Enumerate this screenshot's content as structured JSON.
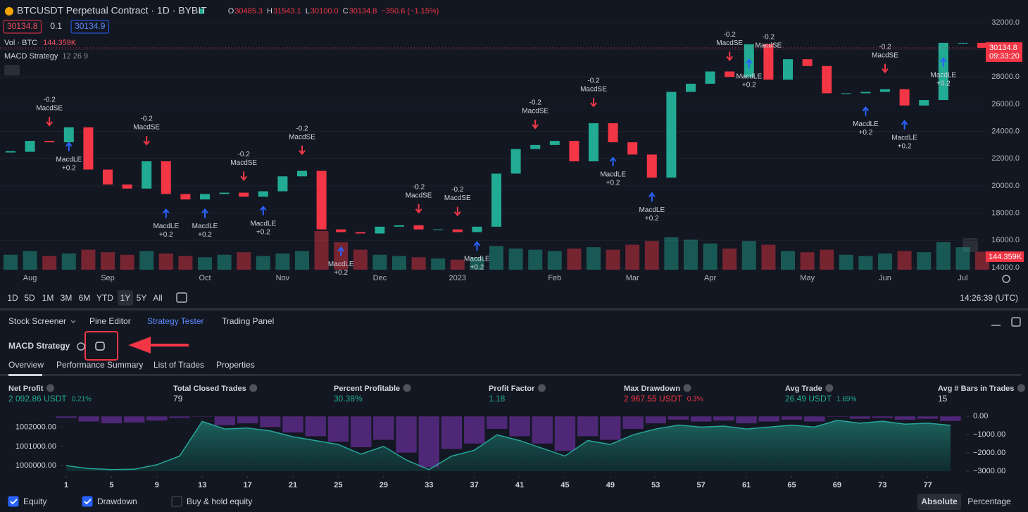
{
  "header": {
    "symbol": "BTCUSDT Perpetual Contract · 1D · BYBIT",
    "ohlc": [
      {
        "key": "O",
        "value": "30485.3"
      },
      {
        "key": "H",
        "value": "31543.1"
      },
      {
        "key": "L",
        "value": "30100.0"
      },
      {
        "key": "C",
        "value": "30134.8"
      }
    ],
    "change": "−350.6 (−1.15%)",
    "order_badges": [
      "30134.8",
      "0.1",
      "30134.9"
    ],
    "volume_label": "Vol · BTC",
    "volume_value": "144.359K",
    "indicator": "MACD Strategy",
    "indicator_params": "12 26 9"
  },
  "price_chart": {
    "type": "candlestick",
    "close": [
      22500,
      23300,
      23200,
      24300,
      21200,
      20100,
      19800,
      21800,
      19400,
      19000,
      19400,
      19500,
      19200,
      19600,
      20700,
      21100,
      16800,
      16600,
      16500,
      17000,
      17100,
      16800,
      16800,
      16600,
      17000,
      20900,
      22700,
      23000,
      23300,
      21800,
      24600,
      23200,
      22300,
      20600,
      26900,
      27500,
      28400,
      28000,
      30400,
      27800,
      29300,
      28800,
      26800,
      26800,
      26900,
      27100,
      25900,
      26300,
      30500,
      30500,
      30134.8
    ],
    "volume": [
      120,
      150,
      110,
      130,
      160,
      140,
      120,
      150,
      130,
      110,
      100,
      120,
      140,
      110,
      130,
      150,
      310,
      220,
      160,
      120,
      110,
      100,
      90,
      80,
      100,
      190,
      170,
      160,
      150,
      170,
      180,
      160,
      200,
      230,
      260,
      240,
      210,
      170,
      230,
      200,
      150,
      140,
      160,
      120,
      110,
      130,
      150,
      140,
      220,
      180,
      144.359
    ],
    "signals": [
      null,
      null,
      {
        "side": "short",
        "label": "MacdSE",
        "qty": "-0.2"
      },
      {
        "side": "long",
        "label": "MacdLE",
        "qty": "+0.2"
      },
      null,
      null,
      null,
      {
        "side": "short",
        "label": "MacdSE",
        "qty": "-0.2"
      },
      {
        "side": "long",
        "label": "MacdLE",
        "qty": "+0.2"
      },
      null,
      {
        "side": "long",
        "label": "MacdLE",
        "qty": "+0.2"
      },
      null,
      {
        "side": "short",
        "label": "MacdSE",
        "qty": "-0.2"
      },
      {
        "side": "long",
        "label": "MacdLE",
        "qty": "+0.2"
      },
      null,
      {
        "side": "short",
        "label": "MacdSE",
        "qty": "-0.2"
      },
      null,
      {
        "side": "long",
        "label": "MacdLE",
        "qty": "+0.2"
      },
      null,
      null,
      null,
      {
        "side": "short",
        "label": "MacdSE",
        "qty": "-0.2"
      },
      null,
      {
        "side": "short",
        "label": "MacdSE",
        "qty": "-0.2"
      },
      {
        "side": "long",
        "label": "MacdLE",
        "qty": "+0.2"
      },
      null,
      null,
      {
        "side": "short",
        "label": "MacdSE",
        "qty": "-0.2"
      },
      null,
      null,
      {
        "side": "short",
        "label": "MacdSE",
        "qty": "-0.2"
      },
      {
        "side": "long",
        "label": "MacdLE",
        "qty": "+0.2"
      },
      null,
      {
        "side": "long",
        "label": "MacdLE",
        "qty": "+0.2"
      },
      null,
      null,
      null,
      {
        "side": "short",
        "label": "MacdSE",
        "qty": "-0.2"
      },
      {
        "side": "long",
        "label": "MacdLE",
        "qty": "+0.2"
      },
      {
        "side": "short",
        "label": "MacdSE",
        "qty": "-0.2"
      },
      null,
      null,
      null,
      null,
      {
        "side": "long",
        "label": "MacdLE",
        "qty": "+0.2"
      },
      {
        "side": "short",
        "label": "MacdSE",
        "qty": "-0.2"
      },
      {
        "side": "long",
        "label": "MacdLE",
        "qty": "+0.2"
      },
      null,
      {
        "side": "long",
        "label": "MacdLE",
        "qty": "+0.2"
      },
      null,
      null
    ],
    "x_labels": [
      null,
      "Aug",
      null,
      null,
      null,
      "Sep",
      null,
      null,
      null,
      null,
      "Oct",
      null,
      null,
      null,
      "Nov",
      null,
      null,
      null,
      null,
      "Dec",
      null,
      null,
      null,
      "2023",
      null,
      null,
      null,
      null,
      "Feb",
      null,
      null,
      null,
      "Mar",
      null,
      null,
      null,
      "Apr",
      null,
      null,
      null,
      null,
      "May",
      null,
      null,
      null,
      "Jun",
      null,
      null,
      null,
      "Jul",
      null
    ],
    "ylim": [
      12700,
      33650
    ],
    "yticks": [
      {
        "value": 32000,
        "label": "32000.0"
      },
      {
        "value": 30000,
        "label": "30000.0"
      },
      {
        "value": 28000,
        "label": "28000.0"
      },
      {
        "value": 26000,
        "label": "26000.0"
      },
      {
        "value": 24000,
        "label": "24000.0"
      },
      {
        "value": 22000,
        "label": "22000.0"
      },
      {
        "value": 20000,
        "label": "20000.0"
      },
      {
        "value": 18000,
        "label": "18000.0"
      },
      {
        "value": 16000,
        "label": "16000.0"
      },
      {
        "value": 14000,
        "label": "14000.0"
      }
    ],
    "last_price": "30134.8",
    "countdown": "09:33:20",
    "volume_tag": "144.359K"
  },
  "toolbar": {
    "ranges": [
      "1D",
      "5D",
      "1M",
      "3M",
      "6M",
      "YTD",
      "1Y",
      "5Y",
      "All"
    ],
    "active_range": "1Y",
    "clock": "14:26:39 (UTC)"
  },
  "panel": {
    "tabs": [
      "Stock Screener",
      "Pine Editor",
      "Strategy Tester",
      "Trading Panel"
    ],
    "active_tab": "Strategy Tester",
    "strategy": "MACD Strategy",
    "subtabs": [
      "Overview",
      "Performance Summary",
      "List of Trades",
      "Properties"
    ],
    "metrics": [
      {
        "label": "Net Profit",
        "value": "2 092.86 USDT",
        "percent": "0.21%",
        "tone": "positive"
      },
      {
        "label": "Total Closed Trades",
        "value": "79",
        "tone": "neutral"
      },
      {
        "label": "Percent Profitable",
        "value": "30.38%",
        "tone": "positive"
      },
      {
        "label": "Profit Factor",
        "value": "1.18",
        "tone": "positive"
      },
      {
        "label": "Max Drawdown",
        "value": "2 967.55 USDT",
        "percent": "0.3%",
        "tone": "negative"
      },
      {
        "label": "Avg Trade",
        "value": "26.49 USDT",
        "percent": "1.69%",
        "tone": "positive"
      },
      {
        "label": "Avg # Bars in Trades",
        "value": "15",
        "tone": "neutral"
      }
    ]
  },
  "equity_chart": {
    "type": "area",
    "x": [
      1,
      3,
      5,
      7,
      9,
      11,
      13,
      15,
      17,
      19,
      21,
      23,
      25,
      27,
      29,
      31,
      33,
      35,
      37,
      39,
      41,
      43,
      45,
      47,
      49,
      51,
      53,
      55,
      57,
      59,
      61,
      63,
      65,
      67,
      69,
      71,
      73,
      75,
      77,
      79
    ],
    "equity": [
      1000000,
      999850,
      999800,
      999820,
      1000050,
      1000500,
      1002290,
      1001900,
      1001950,
      1001800,
      1001500,
      1001300,
      1001100,
      1000600,
      1001000,
      1000300,
      999800,
      1000500,
      1000800,
      1001600,
      1001300,
      1000900,
      1000500,
      1001300,
      1001100,
      1001600,
      1001900,
      1002100,
      1002000,
      1002050,
      1001900,
      1002000,
      1002100,
      1002000,
      1002350,
      1002200,
      1002300,
      1002150,
      1002200,
      1002090
    ],
    "drawdown": [
      -100,
      -300,
      -400,
      -350,
      -250,
      -100,
      0,
      -500,
      -400,
      -600,
      -900,
      -1100,
      -1400,
      -1700,
      -1300,
      -2000,
      -2800,
      -1800,
      -1500,
      -700,
      -1100,
      -1500,
      -1900,
      -1100,
      -1300,
      -700,
      -400,
      -200,
      -300,
      -250,
      -400,
      -300,
      -200,
      -300,
      0,
      -150,
      -100,
      -200,
      -150,
      -270
    ],
    "xlim": [
      1,
      80
    ],
    "xticks": [
      1,
      5,
      9,
      13,
      17,
      21,
      25,
      29,
      33,
      37,
      41,
      45,
      49,
      53,
      57,
      61,
      65,
      69,
      73,
      77
    ],
    "ylim": [
      999720,
      1002560
    ],
    "yticks": [
      {
        "value": 1002000,
        "label": "1002000.00"
      },
      {
        "value": 1001000,
        "label": "1001000.00"
      },
      {
        "value": 1000000,
        "label": "1000000.00"
      }
    ],
    "y2lim": [
      -3000,
      0
    ],
    "y2ticks": [
      {
        "value": 0,
        "label": "0.00"
      },
      {
        "value": -1000,
        "label": "−1000.00"
      },
      {
        "value": -2000,
        "label": "−2000.00"
      },
      {
        "value": -3000,
        "label": "−3000.00"
      }
    ],
    "legend": [
      {
        "label": "Equity",
        "checked": true
      },
      {
        "label": "Drawdown",
        "checked": true
      },
      {
        "label": "Buy & hold equity",
        "checked": false
      }
    ],
    "modes": [
      "Absolute",
      "Percentage"
    ],
    "active_mode": "Absolute"
  }
}
